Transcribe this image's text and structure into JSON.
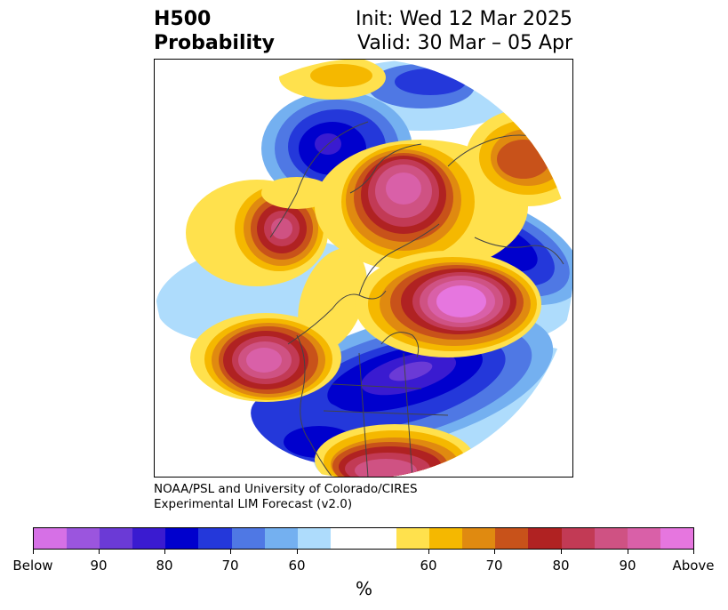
{
  "header": {
    "title_line1": "H500",
    "title_line2": "Probability",
    "init": "Init: Wed 12 Mar 2025",
    "valid": "Valid: 30 Mar – 05 Apr"
  },
  "credit": {
    "line1": "NOAA/PSL and University of Colorado/CIRES",
    "line2": "Experimental LIM Forecast (v2.0)"
  },
  "colorbar": {
    "unit": "%",
    "colors": [
      "#d670e6",
      "#9b55de",
      "#6b3ad6",
      "#3a1bd0",
      "#0000cd",
      "#2438da",
      "#4f78e4",
      "#74b0f0",
      "#aedcfc",
      "#ffffff",
      "#ffe14d",
      "#f5b800",
      "#e08a10",
      "#c8521a",
      "#b02222",
      "#c23a55",
      "#cf5283",
      "#d960a8",
      "#e676df"
    ],
    "ticks": [
      "Below",
      "90",
      "80",
      "70",
      "60",
      "60",
      "70",
      "80",
      "90",
      "Above"
    ]
  },
  "map": {
    "projection": "north-polar-stereographic",
    "variable": "500 hPa geopotential height tercile probability",
    "features": [
      {
        "name": "north-pacific-high",
        "sign": "above",
        "peak": "Above"
      },
      {
        "name": "western-us-high",
        "sign": "above",
        "peak": "Above"
      },
      {
        "name": "north-central-us-low",
        "sign": "below",
        "peak": "80"
      },
      {
        "name": "southeast-us-high",
        "sign": "above",
        "peak": "80"
      },
      {
        "name": "greenland-high",
        "sign": "above",
        "peak": "90"
      },
      {
        "name": "central-asia-high",
        "sign": "above",
        "peak": "Above"
      },
      {
        "name": "east-asia-high",
        "sign": "above",
        "peak": "80"
      },
      {
        "name": "siberia-low",
        "sign": "below",
        "peak": "80"
      },
      {
        "name": "europe-low",
        "sign": "below",
        "peak": "80"
      }
    ]
  }
}
